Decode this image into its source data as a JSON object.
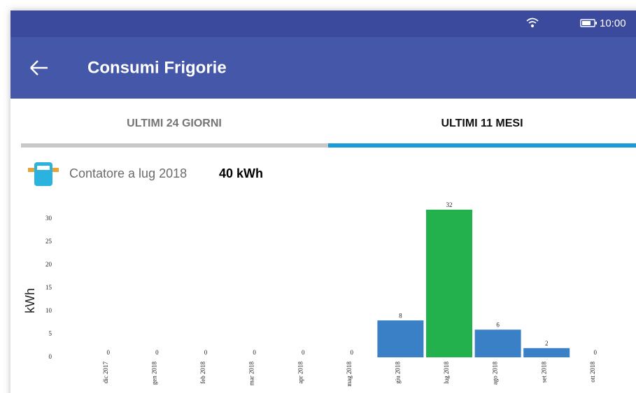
{
  "status_bar": {
    "time": "10:00"
  },
  "app_bar": {
    "title": "Consumi Frigorie"
  },
  "tabs": [
    "ULTIMI 24 GIORNI",
    "ULTIMI 11 MESI"
  ],
  "counter": {
    "label": "Contatore a lug 2018",
    "value": "40 kWh"
  },
  "chart_data": {
    "type": "bar",
    "y_label": "kWh",
    "categories": [
      "dic 2017",
      "gen 2018",
      "feb 2018",
      "mar 2018",
      "apr 2018",
      "mag 2018",
      "giu 2018",
      "lug 2018",
      "ago 2018",
      "set 2018",
      "ott 2018"
    ],
    "values": [
      0,
      0,
      0,
      0,
      0,
      0,
      8,
      32,
      6,
      2,
      0
    ],
    "colors": [
      "#3a80c6",
      "#3a80c6",
      "#3a80c6",
      "#3a80c6",
      "#3a80c6",
      "#3a80c6",
      "#3a80c6",
      "#22b14c",
      "#3a80c6",
      "#3a80c6",
      "#3a80c6"
    ],
    "ylim": [
      0,
      35
    ],
    "yticks": [
      0,
      5,
      10,
      15,
      20,
      25,
      30
    ],
    "grid": false
  }
}
